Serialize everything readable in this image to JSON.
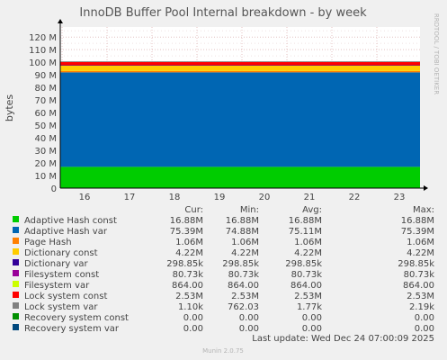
{
  "chart_data": {
    "type": "area",
    "title": "InnoDB Buffer Pool Internal breakdown - by week",
    "ylabel": "bytes",
    "watermark": "RRDTOOL / TOBI OETIKER",
    "x_ticks": [
      "16",
      "17",
      "18",
      "19",
      "20",
      "21",
      "22",
      "23"
    ],
    "y_ticks": [
      "0",
      "10 M",
      "20 M",
      "30 M",
      "40 M",
      "50 M",
      "60 M",
      "70 M",
      "80 M",
      "90 M",
      "100 M",
      "110 M",
      "120 M"
    ],
    "ylim": [
      0,
      128000000
    ],
    "stacked": true,
    "grid": true,
    "columns": [
      "Cur:",
      "Min:",
      "Avg:",
      "Max:"
    ],
    "series": [
      {
        "name": "Adaptive Hash const",
        "color": "#00cc00",
        "value": 16880000,
        "cur": "16.88M",
        "min": "16.88M",
        "avg": "16.88M",
        "max": "16.88M"
      },
      {
        "name": "Adaptive Hash var",
        "color": "#0066b3",
        "value": 75110000,
        "cur": "75.39M",
        "min": "74.88M",
        "avg": "75.11M",
        "max": "75.39M"
      },
      {
        "name": "Page Hash",
        "color": "#ff8000",
        "value": 1060000,
        "cur": "1.06M",
        "min": "1.06M",
        "avg": "1.06M",
        "max": "1.06M"
      },
      {
        "name": "Dictionary const",
        "color": "#ffcc00",
        "value": 4220000,
        "cur": "4.22M",
        "min": "4.22M",
        "avg": "4.22M",
        "max": "4.22M"
      },
      {
        "name": "Dictionary var",
        "color": "#330099",
        "value": 298850,
        "cur": "298.85k",
        "min": "298.85k",
        "avg": "298.85k",
        "max": "298.85k"
      },
      {
        "name": "Filesystem const",
        "color": "#990099",
        "value": 80730,
        "cur": "80.73k",
        "min": "80.73k",
        "avg": "80.73k",
        "max": "80.73k"
      },
      {
        "name": "Filesystem var",
        "color": "#ccff00",
        "value": 864,
        "cur": "864.00",
        "min": "864.00",
        "avg": "864.00",
        "max": "864.00"
      },
      {
        "name": "Lock system const",
        "color": "#ff0000",
        "value": 2530000,
        "cur": "2.53M",
        "min": "2.53M",
        "avg": "2.53M",
        "max": "2.53M"
      },
      {
        "name": "Lock system var",
        "color": "#808080",
        "value": 1770,
        "cur": "1.10k",
        "min": "762.03",
        "avg": "1.77k",
        "max": "2.19k"
      },
      {
        "name": "Recovery system const",
        "color": "#008f00",
        "value": 0,
        "cur": "0.00",
        "min": "0.00",
        "avg": "0.00",
        "max": "0.00"
      },
      {
        "name": "Recovery system var",
        "color": "#00487d",
        "value": 0,
        "cur": "0.00",
        "min": "0.00",
        "avg": "0.00",
        "max": "0.00"
      }
    ],
    "last_update": "Last update: Wed Dec 24 07:00:09 2025",
    "footer": "Munin 2.0.75"
  }
}
